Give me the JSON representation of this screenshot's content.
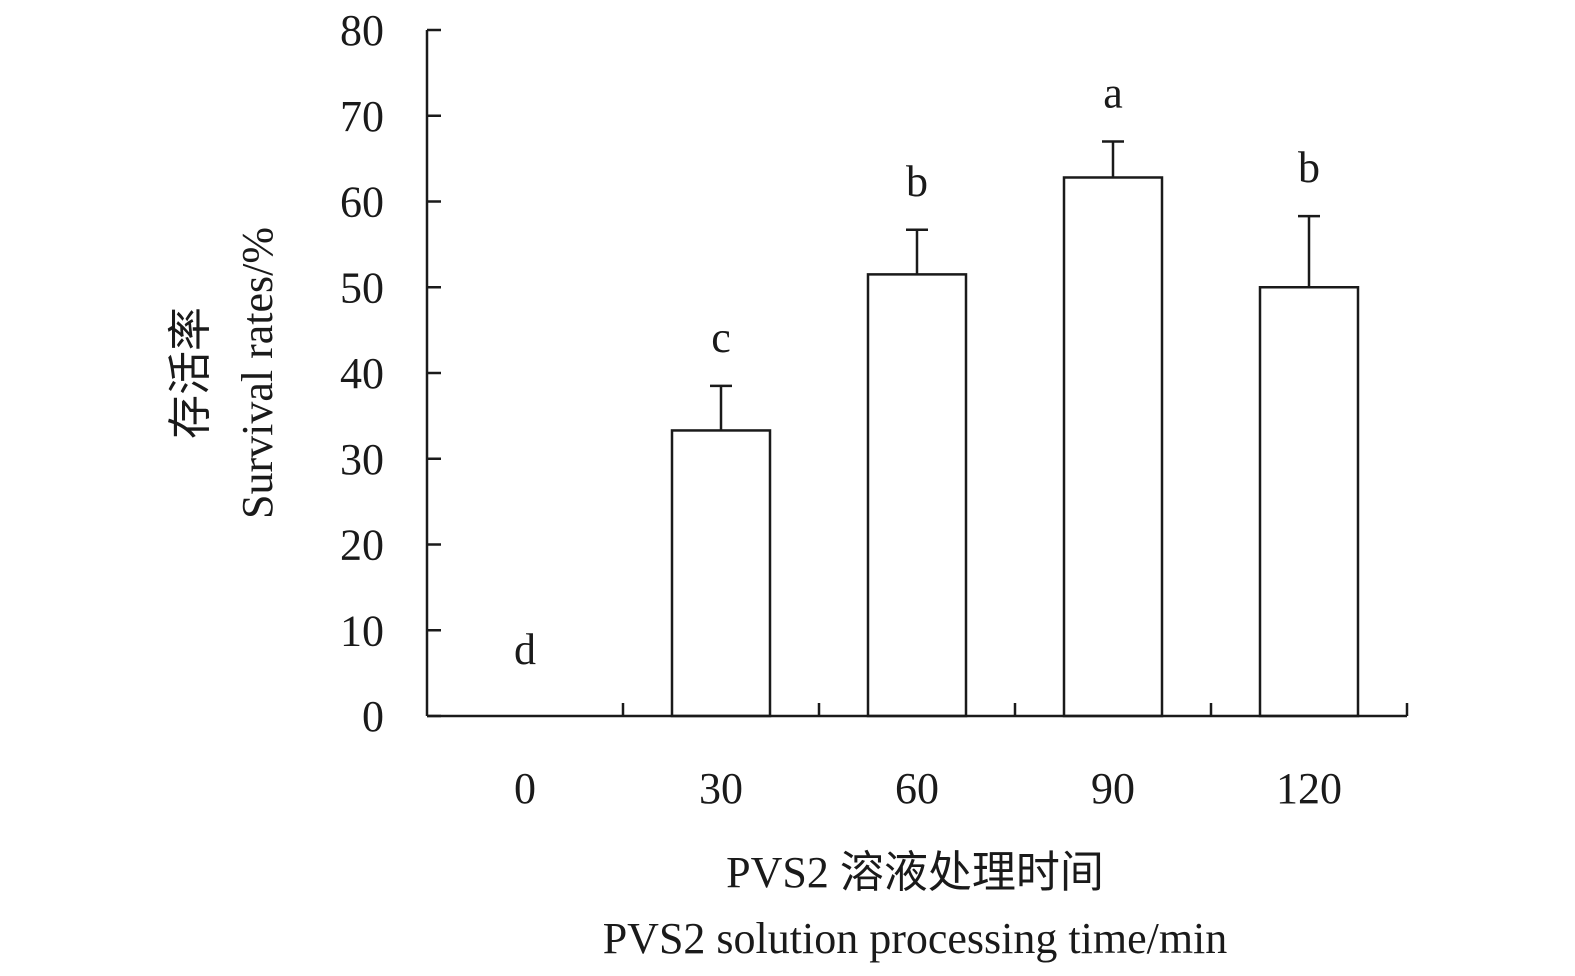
{
  "chart_data": {
    "type": "bar",
    "categories": [
      "0",
      "30",
      "60",
      "90",
      "120"
    ],
    "values": [
      0,
      33.3,
      51.5,
      62.8,
      50.0
    ],
    "errors": [
      0,
      5.2,
      5.2,
      4.2,
      8.3
    ],
    "significance": [
      "d",
      "c",
      "b",
      "a",
      "b"
    ],
    "xlabel_cn": "PVS2 溶液处理时间",
    "xlabel_en": "PVS2 solution processing time/min",
    "ylabel_cn": "存活率",
    "ylabel_en": "Survival rates/%",
    "ylim": [
      0,
      80
    ],
    "yticks": [
      0,
      10,
      20,
      30,
      40,
      50,
      60,
      70,
      80
    ],
    "grid": false,
    "bar_color": "#ffffff",
    "line_color": "#1a1a1a"
  }
}
